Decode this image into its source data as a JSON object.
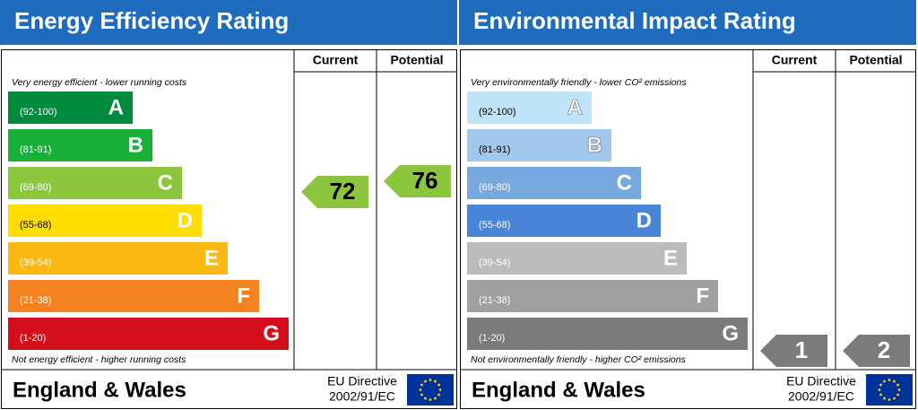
{
  "panels": [
    {
      "title": "Energy Efficiency Rating",
      "columns": [
        "Current",
        "Potential"
      ],
      "top_note": "Very energy efficient - lower running costs",
      "bottom_note": "Not energy efficient - higher running costs",
      "bands": [
        {
          "range": "(92-100)",
          "letter": "A",
          "color": "#008a3e"
        },
        {
          "range": "(81-91)",
          "letter": "B",
          "color": "#19b03a"
        },
        {
          "range": "(69-80)",
          "letter": "C",
          "color": "#8cc63f"
        },
        {
          "range": "(55-68)",
          "letter": "D",
          "color": "#ffdd00"
        },
        {
          "range": "(39-54)",
          "letter": "E",
          "color": "#fcb813"
        },
        {
          "range": "(21-38)",
          "letter": "F",
          "color": "#f58220"
        },
        {
          "range": "(1-20)",
          "letter": "G",
          "color": "#d40e1a"
        }
      ],
      "current": {
        "value": "72",
        "color": "#8cc63f"
      },
      "potential": {
        "value": "76",
        "color": "#8cc63f"
      },
      "footer": {
        "region": "England & Wales",
        "directive": "EU Directive",
        "code": "2002/91/EC"
      }
    },
    {
      "title": "Environmental Impact Rating",
      "columns": [
        "Current",
        "Potential"
      ],
      "top_note": "Very environmentally friendly - lower CO² emissions",
      "bottom_note": "Not environmentally friendly - higher CO² emissions",
      "bands": [
        {
          "range": "(92-100)",
          "letter": "A",
          "color": "#bfe3f7"
        },
        {
          "range": "(81-91)",
          "letter": "B",
          "color": "#a1c7ea"
        },
        {
          "range": "(69-80)",
          "letter": "C",
          "color": "#77a9df"
        },
        {
          "range": "(55-68)",
          "letter": "D",
          "color": "#4a84d6"
        },
        {
          "range": "(39-54)",
          "letter": "E",
          "color": "#bbbbbb"
        },
        {
          "range": "(21-38)",
          "letter": "F",
          "color": "#a0a0a0"
        },
        {
          "range": "(1-20)",
          "letter": "G",
          "color": "#7b7b7b"
        }
      ],
      "current": {
        "value": "1",
        "color": "#7b7b7b"
      },
      "potential": {
        "value": "2",
        "color": "#7b7b7b"
      },
      "footer": {
        "region": "England & Wales",
        "directive": "EU Directive",
        "code": "2002/91/EC"
      }
    }
  ]
}
